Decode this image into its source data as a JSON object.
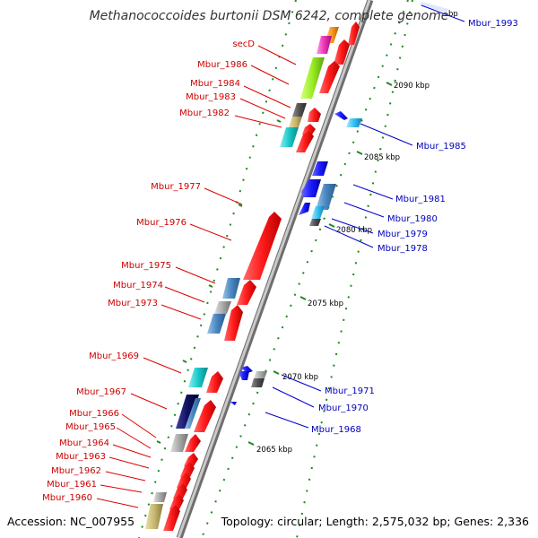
{
  "title": "Methanococcoides burtonii DSM 6242, complete genome",
  "footer": {
    "accession": "Accession: NC_007955",
    "topology": "Topology: circular; Length: 2,575,032 bp; Genes: 2,336"
  },
  "colors": {
    "forward_label": "#cc0000",
    "reverse_label": "#0000bb",
    "backbone": "#9a9a9a",
    "dotted_track": "#1a8a1a"
  },
  "ticks": [
    "2090 kbp",
    "2085 kbp",
    "2080 kbp",
    "2075 kbp",
    "2070 kbp",
    "2065 kbp"
  ],
  "top_partial_tick": "bp",
  "forward_labels": [
    "secD",
    "Mbur_1986",
    "Mbur_1984",
    "Mbur_1983",
    "Mbur_1982",
    "Mbur_1977",
    "Mbur_1976",
    "Mbur_1975",
    "Mbur_1974",
    "Mbur_1973",
    "Mbur_1969",
    "Mbur_1967",
    "Mbur_1966",
    "Mbur_1965",
    "Mbur_1964",
    "Mbur_1963",
    "Mbur_1962",
    "Mbur_1961",
    "Mbur_1960"
  ],
  "reverse_labels": [
    "Mbur_1993",
    "Mbur_1985",
    "Mbur_1981",
    "Mbur_1980",
    "Mbur_1979",
    "Mbur_1978",
    "Mbur_1971",
    "Mbur_1970",
    "Mbur_1968"
  ]
}
